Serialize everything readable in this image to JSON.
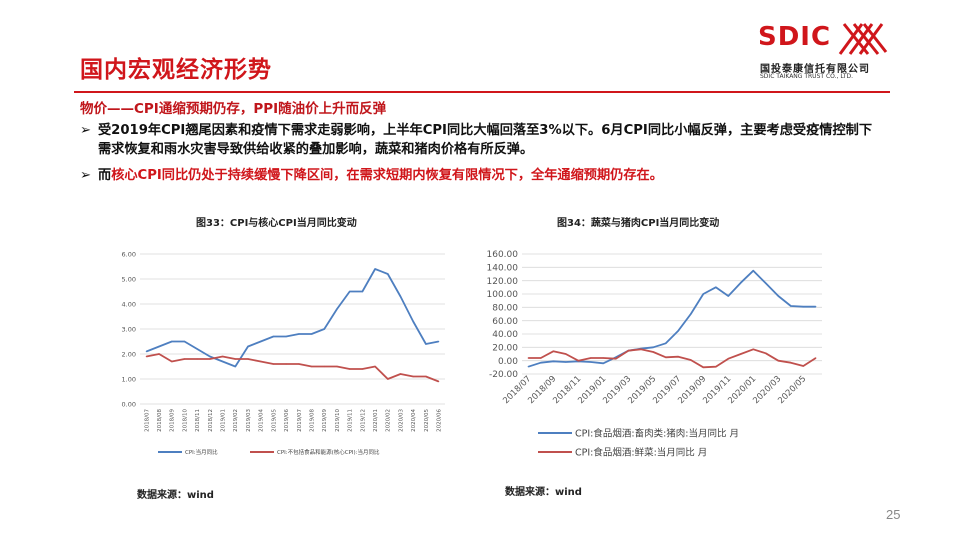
{
  "title": "国内宏观经济形势",
  "logo": {
    "name": "SDIC",
    "cn": "国投泰康信托有限公司",
    "en": "SDIC TAIKANG TRUST CO., LTD."
  },
  "subtitle": "物价——CPI通缩预期仍存，PPI随油价上升而反弹",
  "bullets": [
    {
      "arrow": "➢",
      "text": "受2019年CPI翘尾因素和疫情下需求走弱影响，上半年CPI同比大幅回落至3%以下。6月CPI同比小幅反弹，主要考虑受疫情控制下需求恢复和雨水灾害导致供给收紧的叠加影响，蔬菜和猪肉价格有所反弹。"
    },
    {
      "arrow": "➢",
      "pre": "而",
      "highlight": "核心CPI同比仍处于持续缓慢下降区间，在需求短期内恢复有限情况下，全年通缩预期仍存在。"
    }
  ],
  "page_number": "25",
  "chart_data": [
    {
      "type": "line",
      "title": "图33：CPI与核心CPI当月同比变动",
      "source": "数据来源：wind",
      "x": [
        "2018/07",
        "2018/08",
        "2018/09",
        "2018/10",
        "2018/11",
        "2018/12",
        "2019/01",
        "2019/02",
        "2019/03",
        "2019/04",
        "2019/05",
        "2019/06",
        "2019/07",
        "2019/08",
        "2019/09",
        "2019/10",
        "2019/11",
        "2019/12",
        "2020/01",
        "2020/02",
        "2020/03",
        "2020/04",
        "2020/05",
        "2020/06"
      ],
      "y_ticks": [
        "0.00",
        "1.00",
        "2.00",
        "3.00",
        "4.00",
        "5.00",
        "6.00"
      ],
      "ylim": [
        0,
        6
      ],
      "grid": true,
      "legend": "bottom",
      "series": [
        {
          "name": "CPI:当月同比",
          "color": "#4e7fc0",
          "values": [
            2.1,
            2.3,
            2.5,
            2.5,
            2.2,
            1.9,
            1.7,
            1.5,
            2.3,
            2.5,
            2.7,
            2.7,
            2.8,
            2.8,
            3.0,
            3.8,
            4.5,
            4.5,
            5.4,
            5.2,
            4.3,
            3.3,
            2.4,
            2.5
          ]
        },
        {
          "name": "CPI:不包括食品和能源(核心CPI):当月同比",
          "color": "#c0504d",
          "values": [
            1.9,
            2.0,
            1.7,
            1.8,
            1.8,
            1.8,
            1.9,
            1.8,
            1.8,
            1.7,
            1.6,
            1.6,
            1.6,
            1.5,
            1.5,
            1.5,
            1.4,
            1.4,
            1.5,
            1.0,
            1.2,
            1.1,
            1.1,
            0.9
          ]
        }
      ]
    },
    {
      "type": "line",
      "title": "图34：蔬菜与猪肉CPI当月同比变动",
      "source": "数据来源：wind",
      "x": [
        "2018/07",
        "2018/08",
        "2018/09",
        "2018/10",
        "2018/11",
        "2018/12",
        "2019/01",
        "2019/02",
        "2019/03",
        "2019/04",
        "2019/05",
        "2019/06",
        "2019/07",
        "2019/08",
        "2019/09",
        "2019/10",
        "2019/11",
        "2019/12",
        "2020/01",
        "2020/02",
        "2020/03",
        "2020/04",
        "2020/05",
        "2020/06"
      ],
      "x_tick_labels": [
        "2018/07",
        "2018/09",
        "2018/11",
        "2019/01",
        "2019/03",
        "2019/05",
        "2019/07",
        "2019/09",
        "2019/11",
        "2020/01",
        "2020/03",
        "2020/05"
      ],
      "y_ticks": [
        "-20.00",
        "0.00",
        "20.00",
        "40.00",
        "60.00",
        "80.00",
        "100.00",
        "120.00",
        "140.00",
        "160.00"
      ],
      "ylim": [
        -20,
        160
      ],
      "grid": true,
      "legend": "bottom",
      "series": [
        {
          "name": "CPI:食品烟酒:畜肉类:猪肉:当月同比 月",
          "color": "#4e7fc0",
          "values": [
            -9,
            -3,
            -1,
            -2,
            -1,
            -2,
            -4,
            5,
            15,
            18,
            20,
            26,
            45,
            70,
            100,
            110,
            97,
            117,
            135,
            116,
            97,
            82,
            81,
            81
          ]
        },
        {
          "name": "CPI:食品烟酒:鲜菜:当月同比 月",
          "color": "#c0504d",
          "values": [
            4,
            4,
            14,
            10,
            0,
            4,
            4,
            3,
            15,
            17,
            13,
            5,
            6,
            1,
            -10,
            -9,
            3,
            10,
            17,
            11,
            0,
            -3,
            -8,
            4
          ]
        }
      ]
    }
  ]
}
